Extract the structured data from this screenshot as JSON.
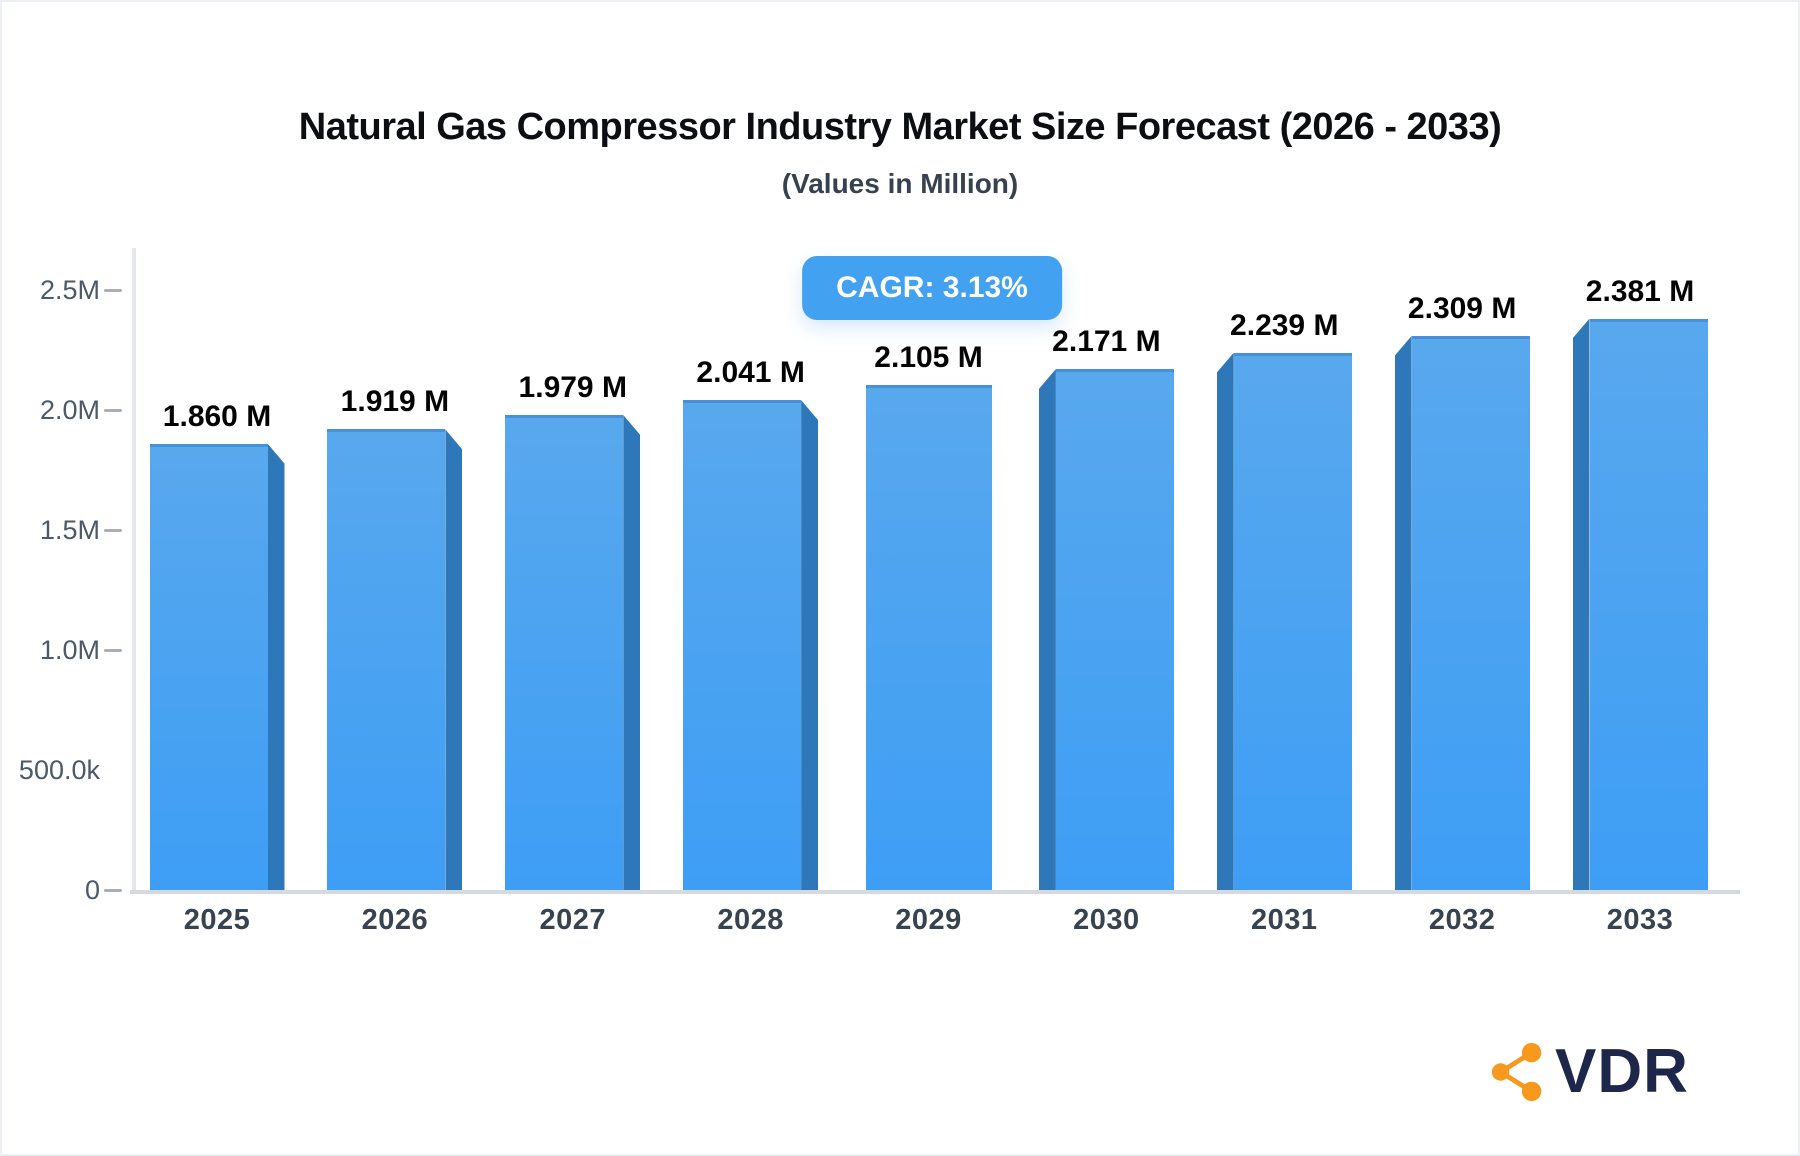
{
  "header": {
    "title": "Natural Gas Compressor Industry Market Size Forecast (2026 - 2033)",
    "subtitle": "(Values in Million)"
  },
  "cagr_badge": {
    "label": "CAGR: 3.13%"
  },
  "logo": {
    "text": "VDR",
    "icon": "share-network-icon"
  },
  "colors": {
    "badge_bg": "#42a1f1",
    "bar_face_top": "#58a8ee",
    "bar_face_bottom": "#3e9ef5",
    "bar_side": "#2e78ba",
    "bar_top_edge": "#4691d9",
    "tick_dash": "#a9afba",
    "y_label": "#4d5868",
    "x_label": "#39424f",
    "logo_text": "#1e2749",
    "logo_icon": "#f6991d"
  },
  "chart_data": {
    "type": "bar",
    "title": "Natural Gas Compressor Industry Market Size Forecast (2026 - 2033)",
    "subtitle": "(Values in Million)",
    "annotation": "CAGR: 3.13%",
    "categories": [
      "2025",
      "2026",
      "2027",
      "2028",
      "2029",
      "2030",
      "2031",
      "2032",
      "2033"
    ],
    "values_millions": [
      1.86,
      1.919,
      1.979,
      2.041,
      2.105,
      2.171,
      2.239,
      2.309,
      2.381
    ],
    "value_labels": [
      "1.860 M",
      "1.919 M",
      "1.979 M",
      "2.041 M",
      "2.105 M",
      "2.171 M",
      "2.239 M",
      "2.309 M",
      "2.381 M"
    ],
    "ylim_millions": [
      0,
      2.5
    ],
    "yticks": [
      {
        "label": "2.5M",
        "value_millions": 2.5,
        "dash": true
      },
      {
        "label": "2.0M",
        "value_millions": 2.0,
        "dash": true
      },
      {
        "label": "1.5M",
        "value_millions": 1.5,
        "dash": true
      },
      {
        "label": "1.0M",
        "value_millions": 1.0,
        "dash": true
      },
      {
        "label": "500.0k",
        "value_millions": 0.5,
        "dash": false
      },
      {
        "label": "0",
        "value_millions": 0.0,
        "dash": true
      }
    ],
    "xlabel": "",
    "ylabel": "",
    "grid": false,
    "legend": false,
    "style": "3d-beveled-bars-center-perspective"
  }
}
